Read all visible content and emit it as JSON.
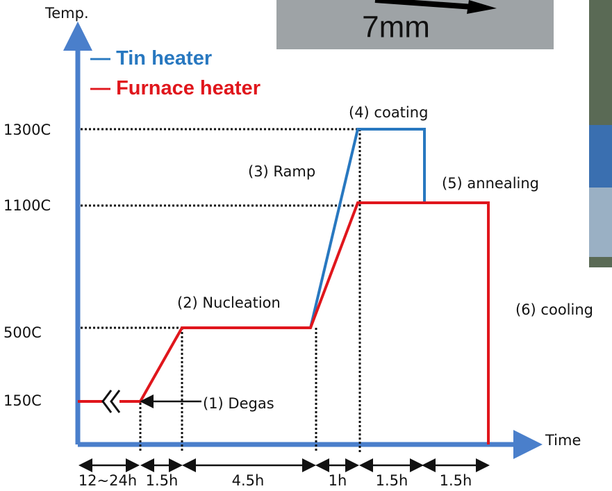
{
  "axes": {
    "y_label": "Temp.",
    "x_label": "Time"
  },
  "legend": [
    {
      "name": "Tin heater"
    },
    {
      "name": "Furnace heater"
    }
  ],
  "levels": [
    "1300C",
    "1100C",
    "500C",
    "150C"
  ],
  "phases": [
    "(1) Degas",
    "(2) Nucleation",
    "(3) Ramp",
    "(4) coating",
    "(5) annealing",
    "(6) cooling"
  ],
  "durations": [
    "12~24h",
    "1.5h",
    "4.5h",
    "1h",
    "1.5h",
    "1.5h"
  ],
  "photo": {
    "scale_label": "7mm"
  }
}
